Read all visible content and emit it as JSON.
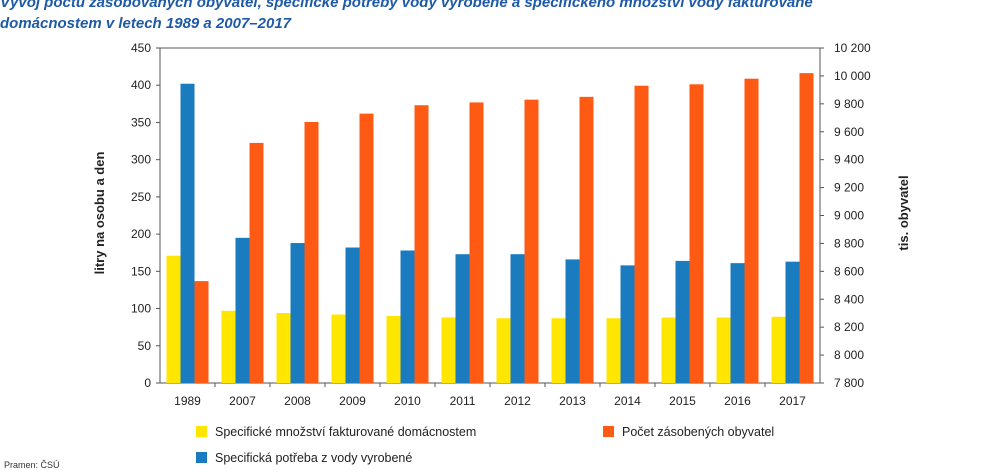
{
  "title": {
    "line1": "Vývoj počtu zásobovaných obyvatel, specifické potřeby vody vyrobené a specifického množství vody fakturované",
    "line2": "domácnostem v letech 1989 a 2007–2017"
  },
  "source": "Pramen: ČSÚ",
  "chart_data": {
    "type": "bar",
    "categories": [
      "1989",
      "2007",
      "2008",
      "2009",
      "2010",
      "2011",
      "2012",
      "2013",
      "2014",
      "2015",
      "2016",
      "2017"
    ],
    "series": [
      {
        "name": "Specifické množství fakturované domácnostem",
        "axis": "left",
        "color": "#ffe600",
        "values": [
          171,
          97,
          94,
          92,
          90,
          88,
          87,
          87,
          87,
          88,
          88,
          89
        ]
      },
      {
        "name": "Specifická potřeba z vody vyrobené",
        "axis": "left",
        "color": "#1a7bbf",
        "values": [
          402,
          195,
          188,
          182,
          178,
          173,
          173,
          166,
          158,
          164,
          161,
          163
        ]
      },
      {
        "name": "Počet zásobených obyvatel",
        "axis": "right",
        "color": "#ff5a14",
        "values": [
          8530,
          9520,
          9670,
          9730,
          9790,
          9810,
          9830,
          9850,
          9930,
          9940,
          9980,
          10020
        ]
      }
    ],
    "ylabel_left": "litry na osobu a den",
    "ylabel_right": "tis. obyvatel",
    "ylim_left": [
      0,
      450
    ],
    "ylim_right": [
      7800,
      10200
    ],
    "yticks_left": [
      0,
      50,
      100,
      150,
      200,
      250,
      300,
      350,
      400,
      450
    ],
    "yticks_right": [
      "7 800",
      "8 000",
      "8 200",
      "8 400",
      "8 600",
      "8 800",
      "9 000",
      "9 200",
      "9 400",
      "9 600",
      "9 800",
      "10 000",
      "10 200"
    ],
    "grid": false,
    "legend": "bottom"
  }
}
